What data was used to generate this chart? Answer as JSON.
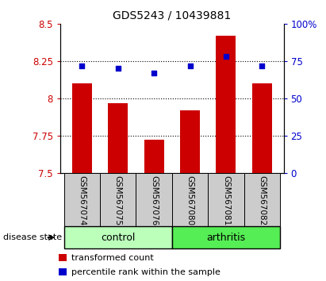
{
  "title": "GDS5243 / 10439881",
  "samples": [
    "GSM567074",
    "GSM567075",
    "GSM567076",
    "GSM567080",
    "GSM567081",
    "GSM567082"
  ],
  "bar_values": [
    8.1,
    7.97,
    7.72,
    7.92,
    8.42,
    8.1
  ],
  "percentile_values": [
    72,
    70,
    67,
    72,
    78,
    72
  ],
  "bar_color": "#cc0000",
  "dot_color": "#0000cc",
  "ylim_left": [
    7.5,
    8.5
  ],
  "ylim_right": [
    0,
    100
  ],
  "yticks_left": [
    7.5,
    7.75,
    8.0,
    8.25,
    8.5
  ],
  "ytick_labels_left": [
    "7.5",
    "7.75",
    "8",
    "8.25",
    "8.5"
  ],
  "yticks_right": [
    0,
    25,
    50,
    75,
    100
  ],
  "ytick_labels_right": [
    "0",
    "25",
    "50",
    "75",
    "100%"
  ],
  "hlines": [
    7.75,
    8.0,
    8.25
  ],
  "groups": [
    {
      "label": "control",
      "indices": [
        0,
        1,
        2
      ],
      "color": "#bbffbb"
    },
    {
      "label": "arthritis",
      "indices": [
        3,
        4,
        5
      ],
      "color": "#55ee55"
    }
  ],
  "disease_state_label": "disease state",
  "legend_bar_label": "transformed count",
  "legend_dot_label": "percentile rank within the sample",
  "bar_color_legend": "#cc0000",
  "dot_color_legend": "#0000cc",
  "axis_label_color_left": "#cc0000",
  "axis_label_color_right": "#0000cc",
  "title_fontsize": 10,
  "gray_box_color": "#cccccc"
}
